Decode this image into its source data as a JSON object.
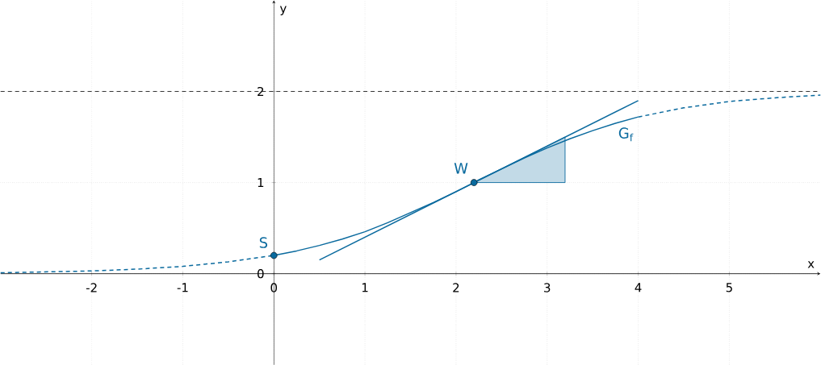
{
  "chart_data": {
    "type": "line",
    "xlabel": "x",
    "ylabel": "y",
    "xlim": [
      -3,
      6
    ],
    "ylim": [
      -1,
      3
    ],
    "xticks": [
      -2,
      -1,
      0,
      1,
      2,
      3,
      4,
      5
    ],
    "yticks": [
      0,
      1,
      2
    ],
    "grid": true,
    "series": [
      {
        "type": "area",
        "color": "#0a6a9e",
        "x": [
          2.197,
          3.197,
          3.197
        ],
        "values": [
          1,
          1,
          1.5
        ]
      },
      {
        "type": "line",
        "color": "#0a6a9e",
        "line_style": "dashed",
        "x": [
          -3,
          -2.5,
          -2,
          -1.5,
          -1,
          -0.5,
          0
        ],
        "values": [
          0.01,
          0.02,
          0.03,
          0.05,
          0.08,
          0.13,
          0.2
        ]
      },
      {
        "type": "line",
        "color": "#0a6a9e",
        "line_style": "solid",
        "x": [
          0,
          0.25,
          0.5,
          0.75,
          1,
          1.25,
          1.5,
          1.75,
          2,
          2.197,
          2.25,
          2.5,
          2.75,
          3,
          3.25,
          3.5,
          3.75,
          4
        ],
        "values": [
          0.2,
          0.25,
          0.31,
          0.38,
          0.46,
          0.56,
          0.67,
          0.78,
          0.9,
          1,
          1.03,
          1.15,
          1.27,
          1.38,
          1.48,
          1.57,
          1.65,
          1.72
        ]
      },
      {
        "type": "line",
        "color": "#0a6a9e",
        "line_style": "dashed",
        "x": [
          4,
          4.5,
          5,
          5.5,
          6
        ],
        "values": [
          1.72,
          1.82,
          1.89,
          1.93,
          1.96
        ]
      },
      {
        "type": "line",
        "color": "#0a6a9e",
        "line_style": "solid",
        "x": [
          0.5,
          4
        ],
        "values": [
          0.15,
          1.9
        ]
      },
      {
        "type": "scatter",
        "color": "#0a6a9e",
        "marker": "circle",
        "x": [
          0,
          2.197
        ],
        "values": [
          0.2,
          1
        ]
      }
    ],
    "ref_lines": [
      {
        "axis": "y",
        "value": 2,
        "color": "#000000",
        "line_style": "dashed"
      }
    ],
    "annotations": [
      {
        "text": "S",
        "x": 0,
        "y": 0.2
      },
      {
        "text": "W",
        "x": 2.197,
        "y": 1
      },
      {
        "text": "G$_{f}$",
        "x": 4,
        "y": 1.72
      }
    ]
  }
}
